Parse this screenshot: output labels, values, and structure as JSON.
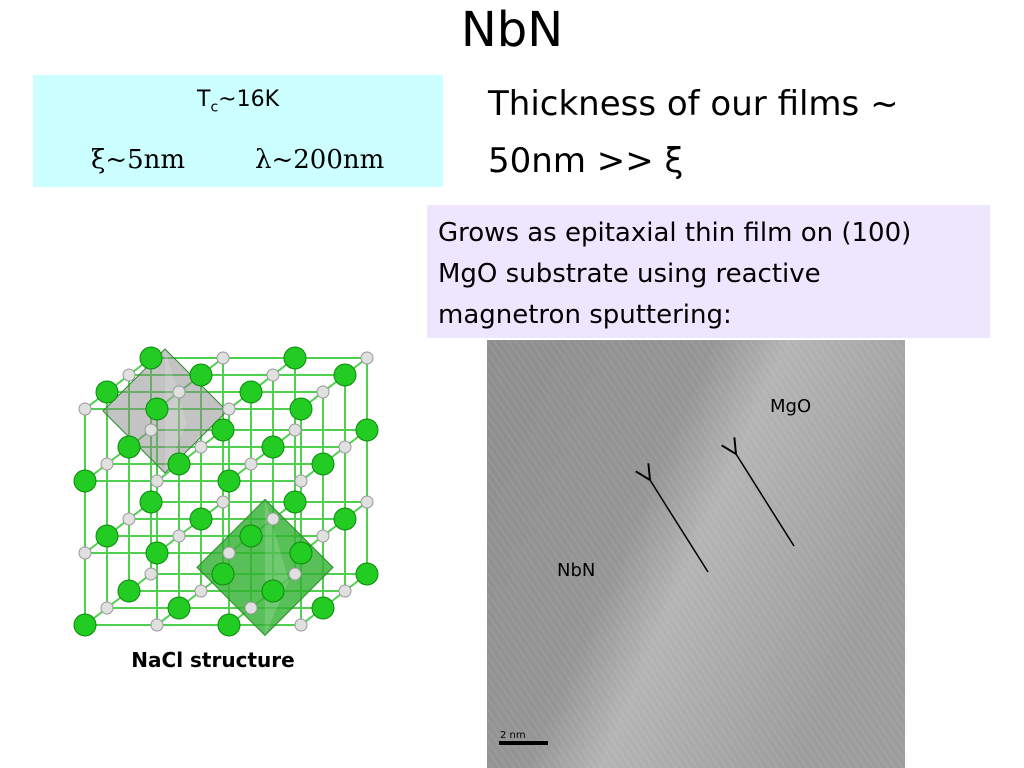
{
  "title": "NbN",
  "properties_box": {
    "tc_symbol": "T",
    "tc_subscript": "c",
    "tc_value": "~16K",
    "coherence_length": "ξ~5nm",
    "penetration_depth": "λ~200nm"
  },
  "thickness_note": {
    "lines": [
      "Thickness of our  films ~",
      "50nm >> ξ"
    ]
  },
  "growth_box": {
    "lines": [
      "Grows as epitaxial thin film on (100)",
      "MgO substrate using reactive",
      "magnetron sputtering:"
    ]
  },
  "micrograph": {
    "label_top": "MgO",
    "label_left": "NbN",
    "scale_bar": "2 nm"
  },
  "crystal": {
    "caption": "NaCl structure"
  }
}
